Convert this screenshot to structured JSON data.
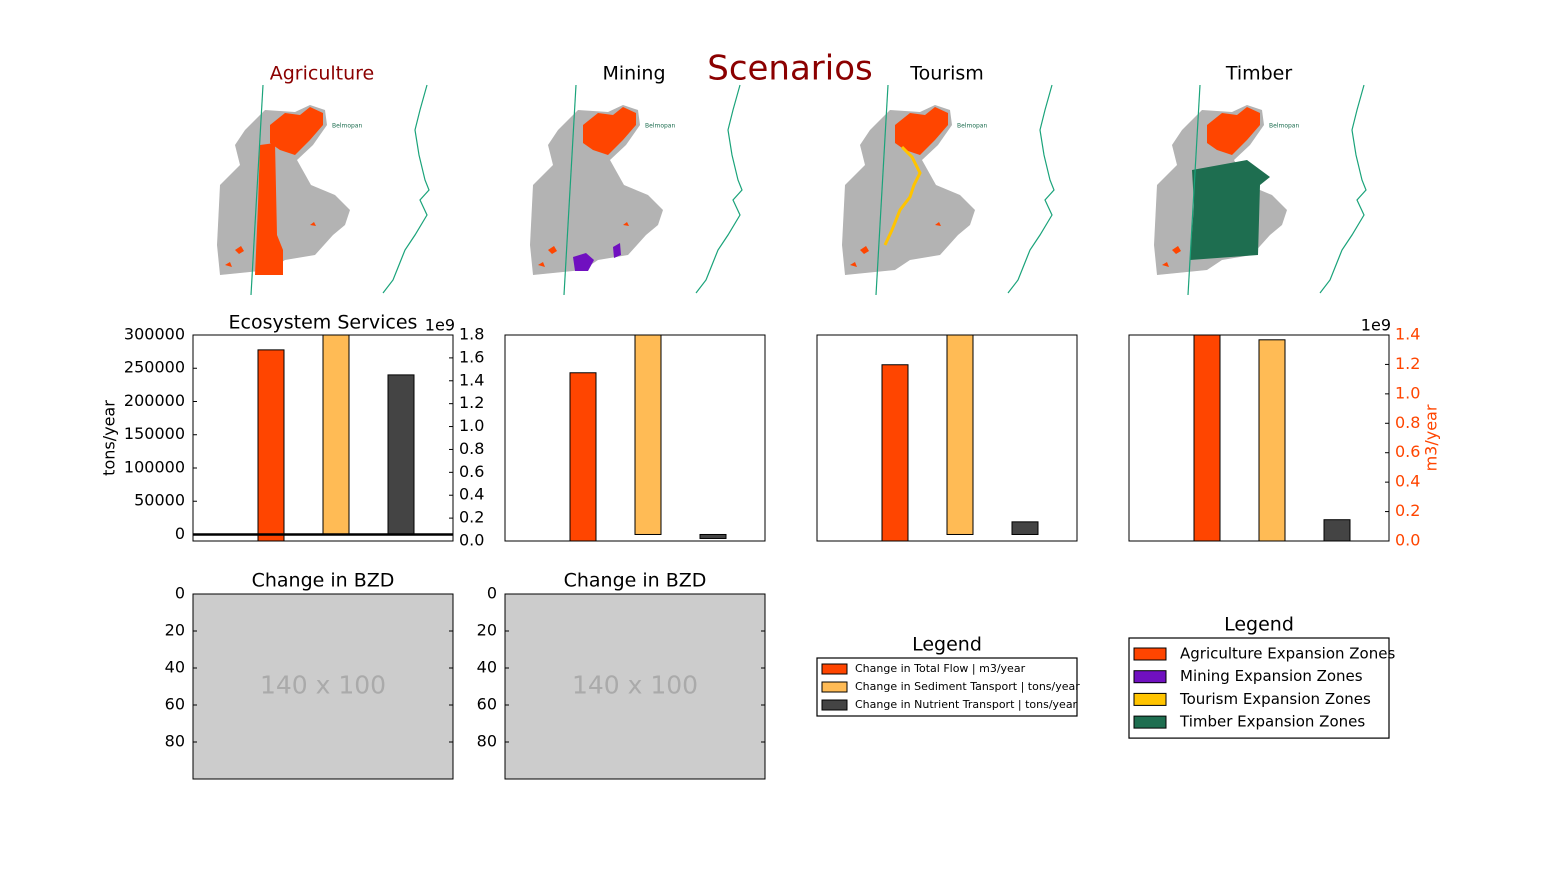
{
  "figure": {
    "title": "Scenarios"
  },
  "maps": [
    {
      "title": "Agriculture",
      "place_label": "Belmopan"
    },
    {
      "title": "Mining",
      "place_label": "Belmopan"
    },
    {
      "title": "Tourism",
      "place_label": "Belmopan"
    },
    {
      "title": "Timber",
      "place_label": "Belmopan"
    }
  ],
  "chart_data": [
    {
      "type": "bar",
      "title": "Ecosystem Services",
      "ylabel": "tons/year",
      "ylim": [
        -9800,
        300000
      ],
      "yticks": [
        300000,
        250000,
        200000,
        150000,
        100000,
        50000,
        0
      ],
      "y2lim": [
        0,
        1.8
      ],
      "y2ticks": [
        {
          "value": 0,
          "label": "0.0"
        },
        0.2,
        0.4,
        0.6,
        0.8,
        {
          "value": 1,
          "label": "1.0"
        },
        1.2,
        1.4,
        1.6,
        1.8
      ],
      "y2_offset_label": "1e9",
      "hlines": [
        0
      ],
      "series": [
        {
          "color": "#ff4500",
          "axis": "y2",
          "values": [
            1.67
          ]
        },
        {
          "color": "#ffbb55",
          "values": [
            300000
          ]
        },
        {
          "color": "#444444",
          "values": [
            240000
          ]
        }
      ]
    },
    {
      "type": "bar",
      "ylim": [
        -9800,
        300000
      ],
      "y2lim": [
        0,
        1.8
      ],
      "series": [
        {
          "color": "#ff4500",
          "axis": "y2",
          "values": [
            1.47
          ]
        },
        {
          "color": "#ffbb55",
          "values": [
            300000
          ]
        },
        {
          "color": "#444444",
          "values": [
            -6000
          ]
        }
      ]
    },
    {
      "type": "bar",
      "ylim": [
        -9800,
        300000
      ],
      "y2lim": [
        0,
        1.8
      ],
      "series": [
        {
          "color": "#ff4500",
          "axis": "y2",
          "values": [
            1.54
          ]
        },
        {
          "color": "#ffbb55",
          "values": [
            300000
          ]
        },
        {
          "color": "#444444",
          "values": [
            19000
          ]
        }
      ]
    },
    {
      "type": "bar",
      "ylim": [
        0,
        300000
      ],
      "y2lim": [
        0,
        1.4
      ],
      "y2ticks": [
        {
          "value": 0,
          "label": "0.0"
        },
        0.2,
        0.4,
        0.6,
        0.8,
        {
          "value": 1,
          "label": "1.0"
        },
        1.2,
        1.4
      ],
      "y2_offset_label": "1e9",
      "y2label": "m3/year",
      "y2_color": "#ff4500",
      "series": [
        {
          "color": "#ff4500",
          "axis": "y2",
          "values": [
            1.4
          ]
        },
        {
          "color": "#ffbb55",
          "values": [
            293000
          ]
        },
        {
          "color": "#444444",
          "values": [
            31000
          ]
        }
      ]
    },
    {
      "type": "image",
      "title": "Change in BZD",
      "image_text": "140 x 100",
      "xlim": [
        0,
        140
      ],
      "ylim": [
        100,
        0
      ],
      "yticks": [
        0,
        20,
        40,
        60,
        80
      ]
    },
    {
      "type": "image",
      "title": "Change in BZD",
      "image_text": "140 x 100",
      "xlim": [
        0,
        140
      ],
      "ylim": [
        100,
        0
      ],
      "yticks": [
        0,
        20,
        40,
        60,
        80
      ]
    }
  ],
  "legends": [
    {
      "title": "Legend",
      "entries": [
        {
          "label": "Change in Total Flow | m3/year",
          "color": "#ff4500"
        },
        {
          "label": "Change in Sediment Tansport | tons/year",
          "color": "#ffbb55"
        },
        {
          "label": "Change in Nutrient Transport | tons/year",
          "color": "#444444"
        }
      ]
    },
    {
      "title": "Legend",
      "entries": [
        {
          "label": "Agriculture Expansion Zones",
          "color": "#ff4500"
        },
        {
          "label": "Mining Expansion Zones",
          "color": "#7010c0"
        },
        {
          "label": "Tourism Expansion Zones",
          "color": "#ffc400"
        },
        {
          "label": "Timber Expansion Zones",
          "color": "#1e6e50"
        }
      ]
    }
  ]
}
